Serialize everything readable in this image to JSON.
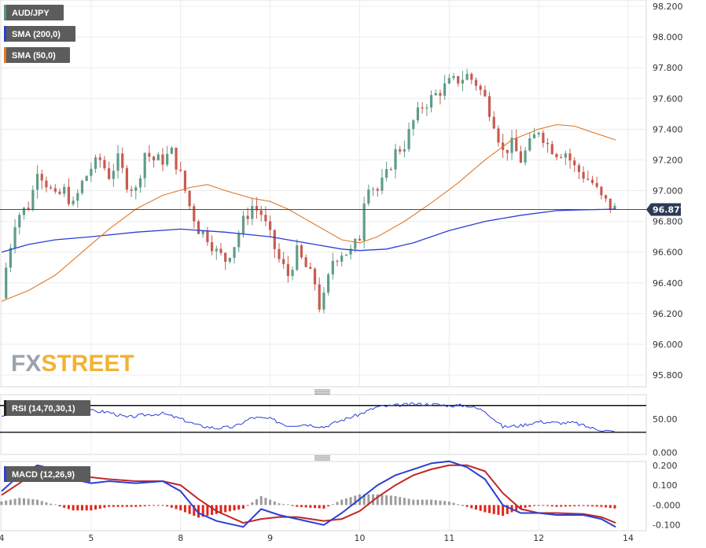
{
  "chart_data": [
    {
      "type": "candlestick",
      "symbol": "AUD/JPY",
      "legend": [
        {
          "label": "AUD/JPY",
          "color": "#5a8f83"
        },
        {
          "label": "SMA (200,0)",
          "color": "#2a3fd6"
        },
        {
          "label": "SMA (50,0)",
          "color": "#e07a2a"
        }
      ],
      "last_price": "96.877",
      "last_price_value": 96.877,
      "ylim": [
        95.72,
        98.22
      ],
      "ytick_values": [
        95.8,
        96.0,
        96.2,
        96.4,
        96.6,
        96.8,
        97.0,
        97.2,
        97.4,
        97.6,
        97.8,
        98.0,
        98.2
      ],
      "ytick_labels": [
        "95.800",
        "96.000",
        "96.200",
        "96.400",
        "96.600",
        "96.800",
        "97.000",
        "97.200",
        "97.400",
        "97.600",
        "97.800",
        "98.000",
        "98.200"
      ],
      "xlim": [
        0,
        7.14
      ],
      "xticks": [
        {
          "label": "4",
          "x": 0
        },
        {
          "label": "5",
          "x": 1
        },
        {
          "label": "8",
          "x": 2
        },
        {
          "label": "9",
          "x": 3
        },
        {
          "label": "10",
          "x": 4
        },
        {
          "label": "11",
          "x": 5
        },
        {
          "label": "12",
          "x": 6
        },
        {
          "label": "14",
          "x": 7
        }
      ],
      "close_path": [
        [
          0.0,
          96.3
        ],
        [
          0.05,
          96.5
        ],
        [
          0.1,
          96.65
        ],
        [
          0.15,
          96.8
        ],
        [
          0.2,
          96.85
        ],
        [
          0.3,
          96.9
        ],
        [
          0.35,
          97.0
        ],
        [
          0.4,
          97.15
        ],
        [
          0.5,
          97.05
        ],
        [
          0.6,
          96.95
        ],
        [
          0.7,
          97.0
        ],
        [
          0.8,
          96.9
        ],
        [
          0.9,
          97.05
        ],
        [
          1.0,
          97.15
        ],
        [
          1.1,
          97.2
        ],
        [
          1.2,
          97.1
        ],
        [
          1.3,
          97.2
        ],
        [
          1.4,
          97.05
        ],
        [
          1.5,
          97.0
        ],
        [
          1.6,
          97.25
        ],
        [
          1.7,
          97.2
        ],
        [
          1.8,
          97.2
        ],
        [
          1.9,
          97.25
        ],
        [
          2.0,
          97.1
        ],
        [
          2.1,
          96.9
        ],
        [
          2.2,
          96.75
        ],
        [
          2.3,
          96.7
        ],
        [
          2.4,
          96.6
        ],
        [
          2.5,
          96.55
        ],
        [
          2.6,
          96.65
        ],
        [
          2.7,
          96.8
        ],
        [
          2.8,
          96.9
        ],
        [
          2.9,
          96.85
        ],
        [
          3.0,
          96.7
        ],
        [
          3.1,
          96.55
        ],
        [
          3.2,
          96.45
        ],
        [
          3.3,
          96.6
        ],
        [
          3.4,
          96.5
        ],
        [
          3.5,
          96.4
        ],
        [
          3.55,
          96.25
        ],
        [
          3.6,
          96.3
        ],
        [
          3.7,
          96.55
        ],
        [
          3.8,
          96.6
        ],
        [
          3.9,
          96.6
        ],
        [
          4.0,
          96.7
        ],
        [
          4.05,
          96.95
        ],
        [
          4.1,
          97.05
        ],
        [
          4.2,
          97.0
        ],
        [
          4.3,
          97.1
        ],
        [
          4.4,
          97.25
        ],
        [
          4.5,
          97.3
        ],
        [
          4.6,
          97.45
        ],
        [
          4.7,
          97.55
        ],
        [
          4.8,
          97.6
        ],
        [
          4.9,
          97.65
        ],
        [
          5.0,
          97.7
        ],
        [
          5.1,
          97.72
        ],
        [
          5.2,
          97.75
        ],
        [
          5.3,
          97.7
        ],
        [
          5.4,
          97.6
        ],
        [
          5.5,
          97.45
        ],
        [
          5.6,
          97.25
        ],
        [
          5.7,
          97.3
        ],
        [
          5.8,
          97.2
        ],
        [
          5.9,
          97.3
        ],
        [
          6.0,
          97.4
        ],
        [
          6.1,
          97.3
        ],
        [
          6.2,
          97.25
        ],
        [
          6.3,
          97.25
        ],
        [
          6.4,
          97.15
        ],
        [
          6.5,
          97.1
        ],
        [
          6.6,
          97.05
        ],
        [
          6.7,
          96.95
        ],
        [
          6.8,
          96.9
        ],
        [
          6.86,
          96.877
        ]
      ],
      "sma200": [
        [
          0.0,
          96.6
        ],
        [
          0.3,
          96.65
        ],
        [
          0.6,
          96.68
        ],
        [
          1.0,
          96.7
        ],
        [
          1.5,
          96.73
        ],
        [
          2.0,
          96.75
        ],
        [
          2.5,
          96.73
        ],
        [
          3.0,
          96.7
        ],
        [
          3.5,
          96.65
        ],
        [
          3.8,
          96.62
        ],
        [
          4.0,
          96.61
        ],
        [
          4.3,
          96.62
        ],
        [
          4.6,
          96.66
        ],
        [
          5.0,
          96.74
        ],
        [
          5.4,
          96.8
        ],
        [
          5.8,
          96.84
        ],
        [
          6.2,
          96.87
        ],
        [
          6.5,
          96.875
        ],
        [
          6.86,
          96.88
        ]
      ],
      "sma50": [
        [
          0.0,
          96.28
        ],
        [
          0.3,
          96.35
        ],
        [
          0.6,
          96.45
        ],
        [
          0.9,
          96.6
        ],
        [
          1.2,
          96.75
        ],
        [
          1.5,
          96.88
        ],
        [
          1.8,
          96.97
        ],
        [
          2.1,
          97.02
        ],
        [
          2.3,
          97.04
        ],
        [
          2.5,
          97.0
        ],
        [
          2.8,
          96.95
        ],
        [
          3.0,
          96.93
        ],
        [
          3.2,
          96.88
        ],
        [
          3.5,
          96.78
        ],
        [
          3.8,
          96.68
        ],
        [
          4.0,
          96.66
        ],
        [
          4.2,
          96.7
        ],
        [
          4.5,
          96.8
        ],
        [
          4.8,
          96.92
        ],
        [
          5.1,
          97.05
        ],
        [
          5.4,
          97.2
        ],
        [
          5.7,
          97.33
        ],
        [
          6.0,
          97.4
        ],
        [
          6.2,
          97.43
        ],
        [
          6.4,
          97.42
        ],
        [
          6.6,
          97.38
        ],
        [
          6.86,
          97.33
        ]
      ]
    },
    {
      "type": "line",
      "indicator": "RSI",
      "legend_label": "RSI (14,70,30,1)",
      "ylim": [
        -2,
        85
      ],
      "ytick_values": [
        0,
        50
      ],
      "ytick_labels": [
        "0.000",
        "50.00"
      ],
      "levels": [
        70,
        30
      ],
      "values": [
        [
          0.0,
          55
        ],
        [
          0.2,
          60
        ],
        [
          0.4,
          65
        ],
        [
          0.6,
          62
        ],
        [
          0.8,
          66
        ],
        [
          1.0,
          62
        ],
        [
          1.2,
          60
        ],
        [
          1.4,
          52
        ],
        [
          1.6,
          56
        ],
        [
          1.8,
          58
        ],
        [
          2.0,
          50
        ],
        [
          2.2,
          40
        ],
        [
          2.4,
          36
        ],
        [
          2.6,
          38
        ],
        [
          2.8,
          52
        ],
        [
          3.0,
          50
        ],
        [
          3.2,
          40
        ],
        [
          3.4,
          42
        ],
        [
          3.6,
          38
        ],
        [
          3.8,
          48
        ],
        [
          4.0,
          57
        ],
        [
          4.2,
          68
        ],
        [
          4.4,
          70
        ],
        [
          4.6,
          72
        ],
        [
          4.8,
          72
        ],
        [
          5.0,
          70
        ],
        [
          5.2,
          70
        ],
        [
          5.4,
          62
        ],
        [
          5.6,
          38
        ],
        [
          5.8,
          40
        ],
        [
          6.0,
          46
        ],
        [
          6.2,
          44
        ],
        [
          6.4,
          44
        ],
        [
          6.6,
          36
        ],
        [
          6.86,
          30
        ]
      ]
    },
    {
      "type": "line",
      "indicator": "MACD",
      "legend_label": "MACD (12,26,9)",
      "ylim": [
        -0.125,
        0.215
      ],
      "ytick_values": [
        -0.1,
        0.0,
        0.1,
        0.2
      ],
      "ytick_labels": [
        "-0.100",
        "-0.000",
        "0.100",
        "0.200"
      ],
      "macd": [
        [
          0.0,
          0.07
        ],
        [
          0.2,
          0.15
        ],
        [
          0.4,
          0.2
        ],
        [
          0.6,
          0.18
        ],
        [
          0.8,
          0.13
        ],
        [
          1.0,
          0.11
        ],
        [
          1.2,
          0.12
        ],
        [
          1.5,
          0.11
        ],
        [
          1.8,
          0.12
        ],
        [
          2.0,
          0.07
        ],
        [
          2.2,
          -0.04
        ],
        [
          2.4,
          -0.08
        ],
        [
          2.7,
          -0.11
        ],
        [
          2.9,
          -0.02
        ],
        [
          3.1,
          -0.05
        ],
        [
          3.3,
          -0.07
        ],
        [
          3.6,
          -0.1
        ],
        [
          3.8,
          -0.04
        ],
        [
          4.0,
          0.03
        ],
        [
          4.2,
          0.1
        ],
        [
          4.4,
          0.15
        ],
        [
          4.6,
          0.18
        ],
        [
          4.8,
          0.21
        ],
        [
          5.0,
          0.22
        ],
        [
          5.2,
          0.19
        ],
        [
          5.4,
          0.13
        ],
        [
          5.6,
          0.0
        ],
        [
          5.8,
          -0.04
        ],
        [
          6.0,
          -0.04
        ],
        [
          6.2,
          -0.05
        ],
        [
          6.5,
          -0.05
        ],
        [
          6.7,
          -0.07
        ],
        [
          6.86,
          -0.11
        ]
      ],
      "signal": [
        [
          0.0,
          0.05
        ],
        [
          0.2,
          0.11
        ],
        [
          0.4,
          0.17
        ],
        [
          0.6,
          0.18
        ],
        [
          0.8,
          0.16
        ],
        [
          1.0,
          0.14
        ],
        [
          1.2,
          0.13
        ],
        [
          1.5,
          0.12
        ],
        [
          1.8,
          0.12
        ],
        [
          2.0,
          0.1
        ],
        [
          2.2,
          0.03
        ],
        [
          2.4,
          -0.03
        ],
        [
          2.7,
          -0.09
        ],
        [
          2.9,
          -0.07
        ],
        [
          3.1,
          -0.06
        ],
        [
          3.3,
          -0.06
        ],
        [
          3.6,
          -0.08
        ],
        [
          3.8,
          -0.07
        ],
        [
          4.0,
          -0.03
        ],
        [
          4.2,
          0.04
        ],
        [
          4.4,
          0.1
        ],
        [
          4.6,
          0.15
        ],
        [
          4.8,
          0.18
        ],
        [
          5.0,
          0.2
        ],
        [
          5.2,
          0.2
        ],
        [
          5.4,
          0.17
        ],
        [
          5.6,
          0.06
        ],
        [
          5.8,
          -0.02
        ],
        [
          6.0,
          -0.04
        ],
        [
          6.2,
          -0.04
        ],
        [
          6.5,
          -0.045
        ],
        [
          6.7,
          -0.06
        ],
        [
          6.86,
          -0.09
        ]
      ]
    }
  ],
  "watermark": {
    "fx": "FX",
    "street": "STREET"
  }
}
